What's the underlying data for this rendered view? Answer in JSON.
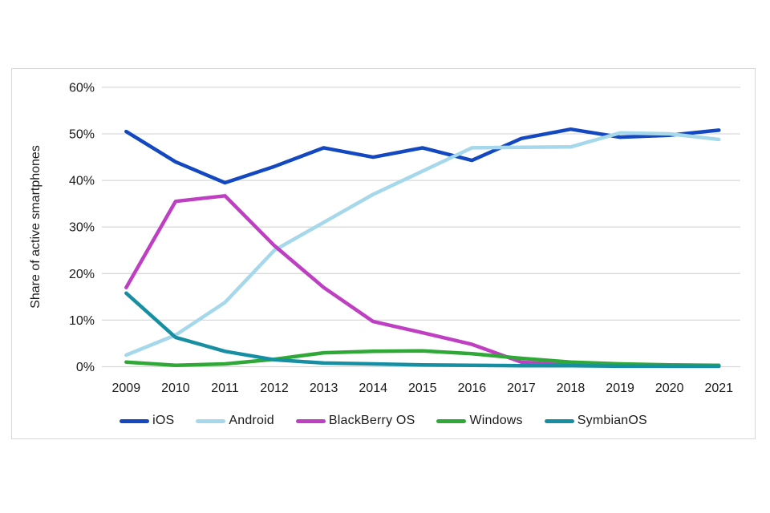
{
  "chart_data": {
    "type": "line",
    "title": "",
    "xlabel": "",
    "ylabel": "Share of active smartphones",
    "x": [
      2009,
      2010,
      2011,
      2012,
      2013,
      2014,
      2015,
      2016,
      2017,
      2018,
      2019,
      2020,
      2021
    ],
    "ylim": [
      0,
      60
    ],
    "ytick_step": 10,
    "ytick_suffix": "%",
    "grid": "horizontal",
    "legend_position": "bottom",
    "series": [
      {
        "name": "iOS",
        "color": "#1348c0",
        "values": [
          50.5,
          44.0,
          39.5,
          43.0,
          47.0,
          45.0,
          47.0,
          44.3,
          49.0,
          51.0,
          49.3,
          49.7,
          50.8
        ]
      },
      {
        "name": "Android",
        "color": "#a5d8ea",
        "values": [
          2.5,
          6.8,
          13.8,
          25.0,
          31.0,
          37.0,
          42.0,
          47.0,
          47.1,
          47.2,
          50.2,
          50.0,
          48.8
        ]
      },
      {
        "name": "BlackBerry OS",
        "color": "#bf3fc3",
        "values": [
          17.0,
          35.5,
          36.7,
          26.0,
          17.0,
          9.7,
          7.3,
          4.8,
          1.0,
          0.3,
          0.2,
          0.1,
          0.1
        ]
      },
      {
        "name": "Windows",
        "color": "#2fa837",
        "values": [
          1.0,
          0.3,
          0.6,
          1.6,
          3.0,
          3.3,
          3.4,
          2.8,
          1.8,
          1.0,
          0.6,
          0.4,
          0.3
        ]
      },
      {
        "name": "SymbianOS",
        "color": "#168fa3",
        "values": [
          15.8,
          6.3,
          3.3,
          1.5,
          0.8,
          0.6,
          0.4,
          0.3,
          0.2,
          0.2,
          0.1,
          0.1,
          0.1
        ]
      }
    ],
    "colors": {
      "gridline": "#d9d9d9",
      "text": "#1a1a1a",
      "card_border": "#d7d7d7",
      "background": "#ffffff"
    }
  }
}
